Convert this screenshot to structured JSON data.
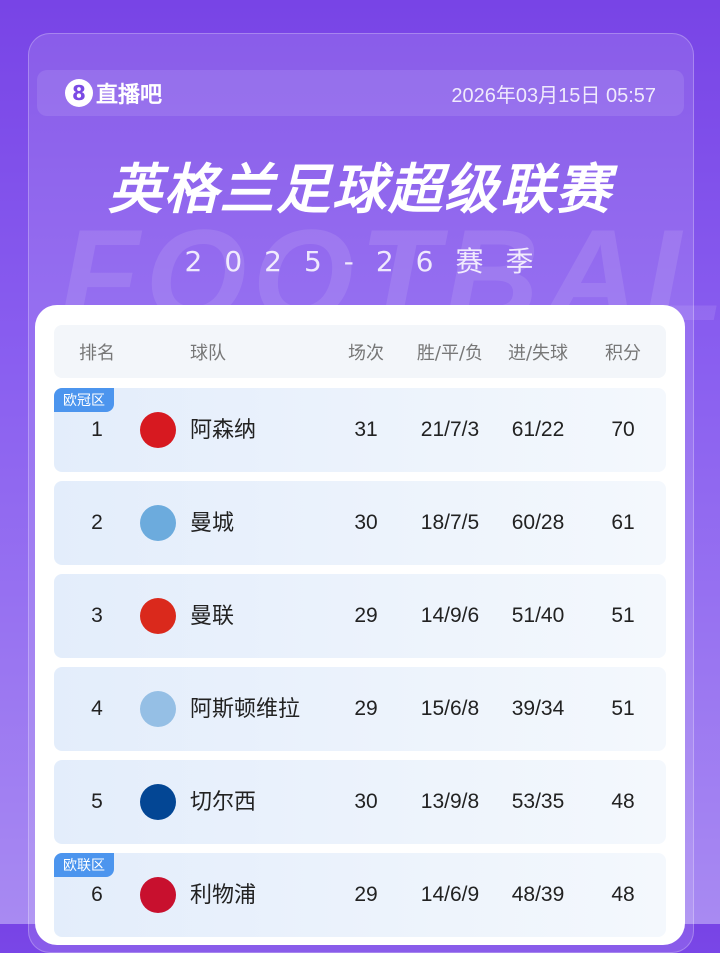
{
  "brand": {
    "logo_text": "直播吧",
    "logo_mark": "8"
  },
  "timestamp": "2026年03月15日 05:57",
  "title": "英格兰足球超级联赛",
  "season": "2025-26赛季",
  "watermark": "FOOTBALL",
  "table": {
    "headers": [
      "排名",
      "球队",
      "场次",
      "胜/平/负",
      "进/失球",
      "积分"
    ],
    "rows": [
      {
        "rank": "1",
        "team": "阿森纳",
        "played": "31",
        "wdl": "21/7/3",
        "goals": "61/22",
        "points": "70",
        "zone": "欧冠区",
        "logo_color": "#d71920"
      },
      {
        "rank": "2",
        "team": "曼城",
        "played": "30",
        "wdl": "18/7/5",
        "goals": "60/28",
        "points": "61",
        "zone": "",
        "logo_color": "#6cabdd"
      },
      {
        "rank": "3",
        "team": "曼联",
        "played": "29",
        "wdl": "14/9/6",
        "goals": "51/40",
        "points": "51",
        "zone": "",
        "logo_color": "#da291c"
      },
      {
        "rank": "4",
        "team": "阿斯顿维拉",
        "played": "29",
        "wdl": "15/6/8",
        "goals": "39/34",
        "points": "51",
        "zone": "",
        "logo_color": "#95bfe5"
      },
      {
        "rank": "5",
        "team": "切尔西",
        "played": "30",
        "wdl": "13/9/8",
        "goals": "53/35",
        "points": "48",
        "zone": "",
        "logo_color": "#034694"
      },
      {
        "rank": "6",
        "team": "利物浦",
        "played": "29",
        "wdl": "14/6/9",
        "goals": "48/39",
        "points": "48",
        "zone": "欧联区",
        "logo_color": "#c8102e"
      }
    ]
  },
  "colors": {
    "accent": "#7844e6",
    "badge": "#4c95ee"
  }
}
